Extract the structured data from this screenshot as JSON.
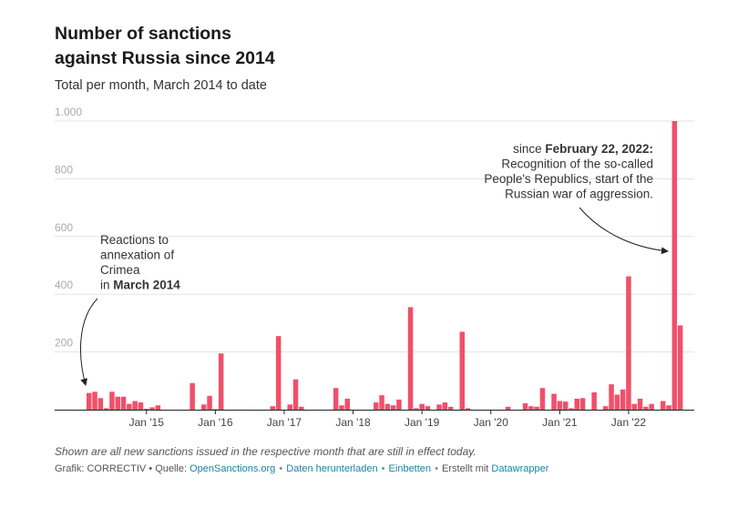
{
  "chart_data": {
    "type": "bar",
    "title_lines": [
      "Number of sanctions",
      "against Russia since 2014"
    ],
    "subtitle": "Total per month, March 2014 to date",
    "y_ticks": [
      "1.000",
      "800",
      "600",
      "400",
      "200"
    ],
    "y_tick_values": [
      1000,
      800,
      600,
      400,
      200
    ],
    "ylim": [
      0,
      1000
    ],
    "x_tick_labels": [
      "Jan '15",
      "Jan '16",
      "Jan '17",
      "Jan '18",
      "Jan '19",
      "Jan '20",
      "Jan '21",
      "Jan '22"
    ],
    "x_tick_months": [
      "2015-01",
      "2016-01",
      "2017-01",
      "2018-01",
      "2019-01",
      "2020-01",
      "2021-01",
      "2022-01"
    ],
    "first_month": "2014-03",
    "values": [
      58,
      62,
      40,
      5,
      62,
      45,
      45,
      20,
      30,
      25,
      3,
      8,
      15,
      0,
      0,
      0,
      0,
      0,
      92,
      0,
      18,
      48,
      2,
      195,
      0,
      0,
      0,
      0,
      0,
      0,
      0,
      0,
      12,
      255,
      0,
      18,
      105,
      10,
      0,
      0,
      0,
      0,
      0,
      75,
      15,
      38,
      0,
      0,
      0,
      0,
      25,
      50,
      20,
      15,
      35,
      0,
      355,
      5,
      20,
      12,
      0,
      18,
      25,
      10,
      0,
      270,
      5,
      0,
      0,
      0,
      0,
      0,
      0,
      10,
      0,
      0,
      22,
      12,
      10,
      75,
      0,
      55,
      30,
      28,
      5,
      38,
      40,
      0,
      60,
      0,
      12,
      88,
      52,
      70,
      462,
      20,
      38,
      10,
      20,
      0,
      30,
      15,
      1000,
      292
    ],
    "color": "#f0506b",
    "annotations": [
      {
        "lines": [
          [
            {
              "text": "Reactions to"
            }
          ],
          [
            {
              "text": "annexation of"
            }
          ],
          [
            {
              "text": "Crimea"
            }
          ],
          [
            {
              "text": "in "
            },
            {
              "text": "March 2014",
              "bold": true
            }
          ]
        ]
      },
      {
        "lines": [
          [
            {
              "text": "since "
            },
            {
              "text": "February 22, 2022:",
              "bold": true
            }
          ],
          [
            {
              "text": "Recognition of the so-called"
            }
          ],
          [
            {
              "text": "People's Republics, start of the"
            }
          ],
          [
            {
              "text": "Russian war of aggression."
            }
          ]
        ]
      }
    ]
  },
  "footer": {
    "notes": "Shown are all new sanctions issued in the respective month that are still in effect today.",
    "credit_prefix": "Grafik: CORRECTIV • Quelle: ",
    "source_link": "OpenSanctions.org",
    "download_link": "Daten herunterladen",
    "embed_link": "Einbetten",
    "created_with": "Erstellt mit ",
    "datawrapper_link": "Datawrapper"
  }
}
